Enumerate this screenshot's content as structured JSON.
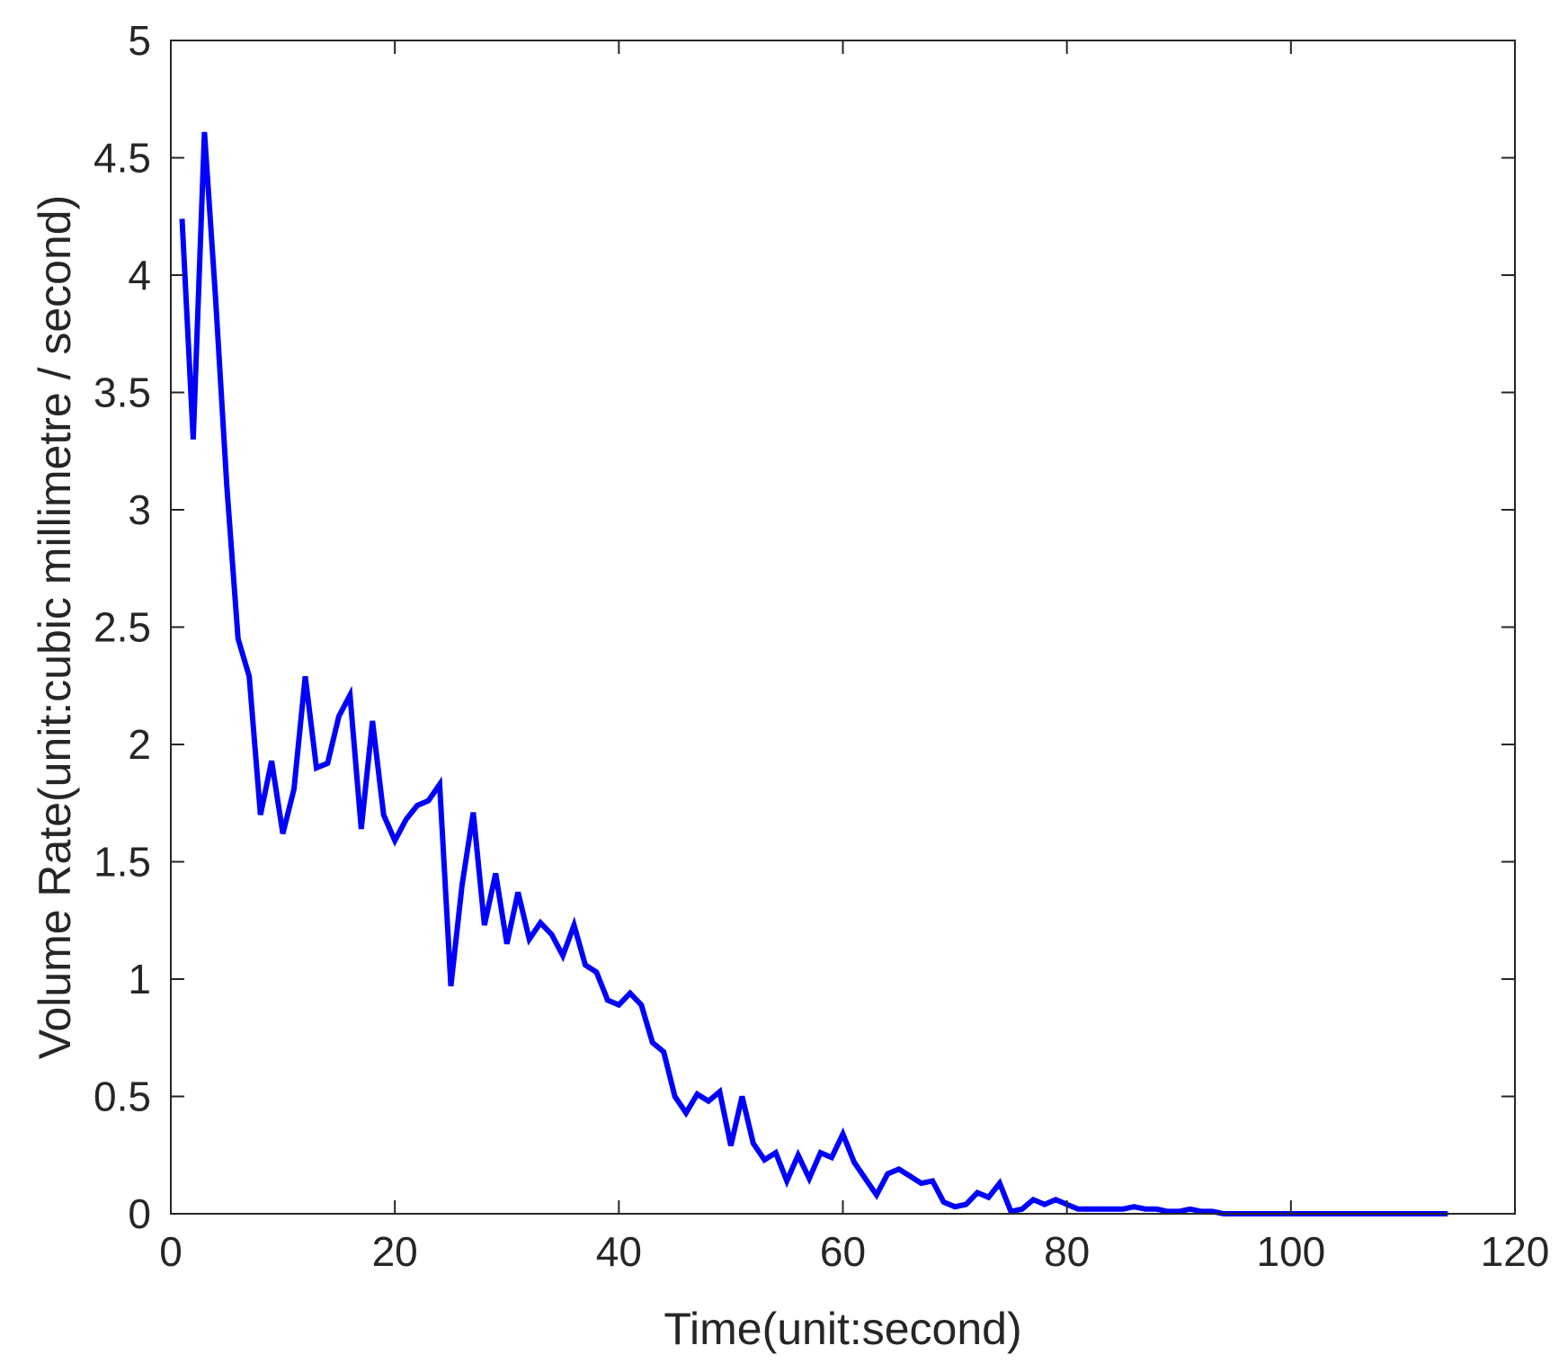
{
  "chart_data": {
    "type": "line",
    "title": "",
    "xlabel": "Time(unit:second)",
    "ylabel": "Volume Rate(unit:cubic millimetre / second)",
    "xlim": [
      0,
      120
    ],
    "ylim": [
      0,
      5
    ],
    "xticks": [
      0,
      20,
      40,
      60,
      80,
      100,
      120
    ],
    "yticks": [
      0,
      0.5,
      1,
      1.5,
      2,
      2.5,
      3,
      3.5,
      4,
      4.5,
      5
    ],
    "xtick_labels": [
      "0",
      "20",
      "40",
      "60",
      "80",
      "100",
      "120"
    ],
    "ytick_labels": [
      "0",
      "0.5",
      "1",
      "1.5",
      "2",
      "2.5",
      "3",
      "3.5",
      "4",
      "4.5",
      "5"
    ],
    "grid": false,
    "series": [
      {
        "color": "#0000ff",
        "x": [
          1,
          2,
          3,
          4,
          5,
          6,
          7,
          8,
          9,
          10,
          11,
          12,
          13,
          14,
          15,
          16,
          17,
          18,
          19,
          20,
          21,
          22,
          23,
          24,
          25,
          26,
          27,
          28,
          29,
          30,
          31,
          32,
          33,
          34,
          35,
          36,
          37,
          38,
          39,
          40,
          41,
          42,
          43,
          44,
          45,
          46,
          47,
          48,
          49,
          50,
          51,
          52,
          53,
          54,
          55,
          56,
          57,
          58,
          59,
          60,
          61,
          62,
          63,
          64,
          65,
          66,
          67,
          68,
          69,
          70,
          71,
          72,
          73,
          74,
          75,
          76,
          77,
          78,
          79,
          80,
          81,
          82,
          83,
          84,
          85,
          86,
          87,
          88,
          89,
          90,
          91,
          92,
          93,
          94,
          95,
          96,
          97,
          98,
          99,
          100,
          101,
          102,
          103,
          104,
          105,
          106,
          107,
          108,
          109,
          110,
          111,
          112,
          113,
          114
        ],
        "y": [
          4.24,
          3.3,
          4.61,
          3.9,
          3.1,
          2.45,
          2.29,
          1.7,
          1.93,
          1.62,
          1.81,
          2.29,
          1.9,
          1.92,
          2.12,
          2.21,
          1.64,
          2.1,
          1.7,
          1.59,
          1.68,
          1.74,
          1.76,
          1.83,
          0.97,
          1.4,
          1.71,
          1.23,
          1.45,
          1.15,
          1.37,
          1.17,
          1.24,
          1.19,
          1.1,
          1.23,
          1.06,
          1.03,
          0.91,
          0.89,
          0.94,
          0.89,
          0.73,
          0.69,
          0.5,
          0.43,
          0.51,
          0.48,
          0.52,
          0.29,
          0.5,
          0.3,
          0.23,
          0.26,
          0.14,
          0.25,
          0.15,
          0.26,
          0.24,
          0.34,
          0.22,
          0.15,
          0.08,
          0.17,
          0.19,
          0.16,
          0.13,
          0.14,
          0.05,
          0.03,
          0.04,
          0.09,
          0.07,
          0.13,
          0.01,
          0.02,
          0.06,
          0.04,
          0.06,
          0.04,
          0.02,
          0.02,
          0.02,
          0.02,
          0.02,
          0.03,
          0.02,
          0.02,
          0.01,
          0.01,
          0.02,
          0.01,
          0.01,
          0.0,
          0.0,
          0.0,
          0.0,
          0.0,
          0.0,
          0.0,
          0.0,
          0.0,
          0.0,
          0.0,
          0.0,
          0.0,
          0.0,
          0.0,
          0.0,
          0.0,
          0.0,
          0.0,
          0.0,
          0.0
        ]
      }
    ]
  }
}
